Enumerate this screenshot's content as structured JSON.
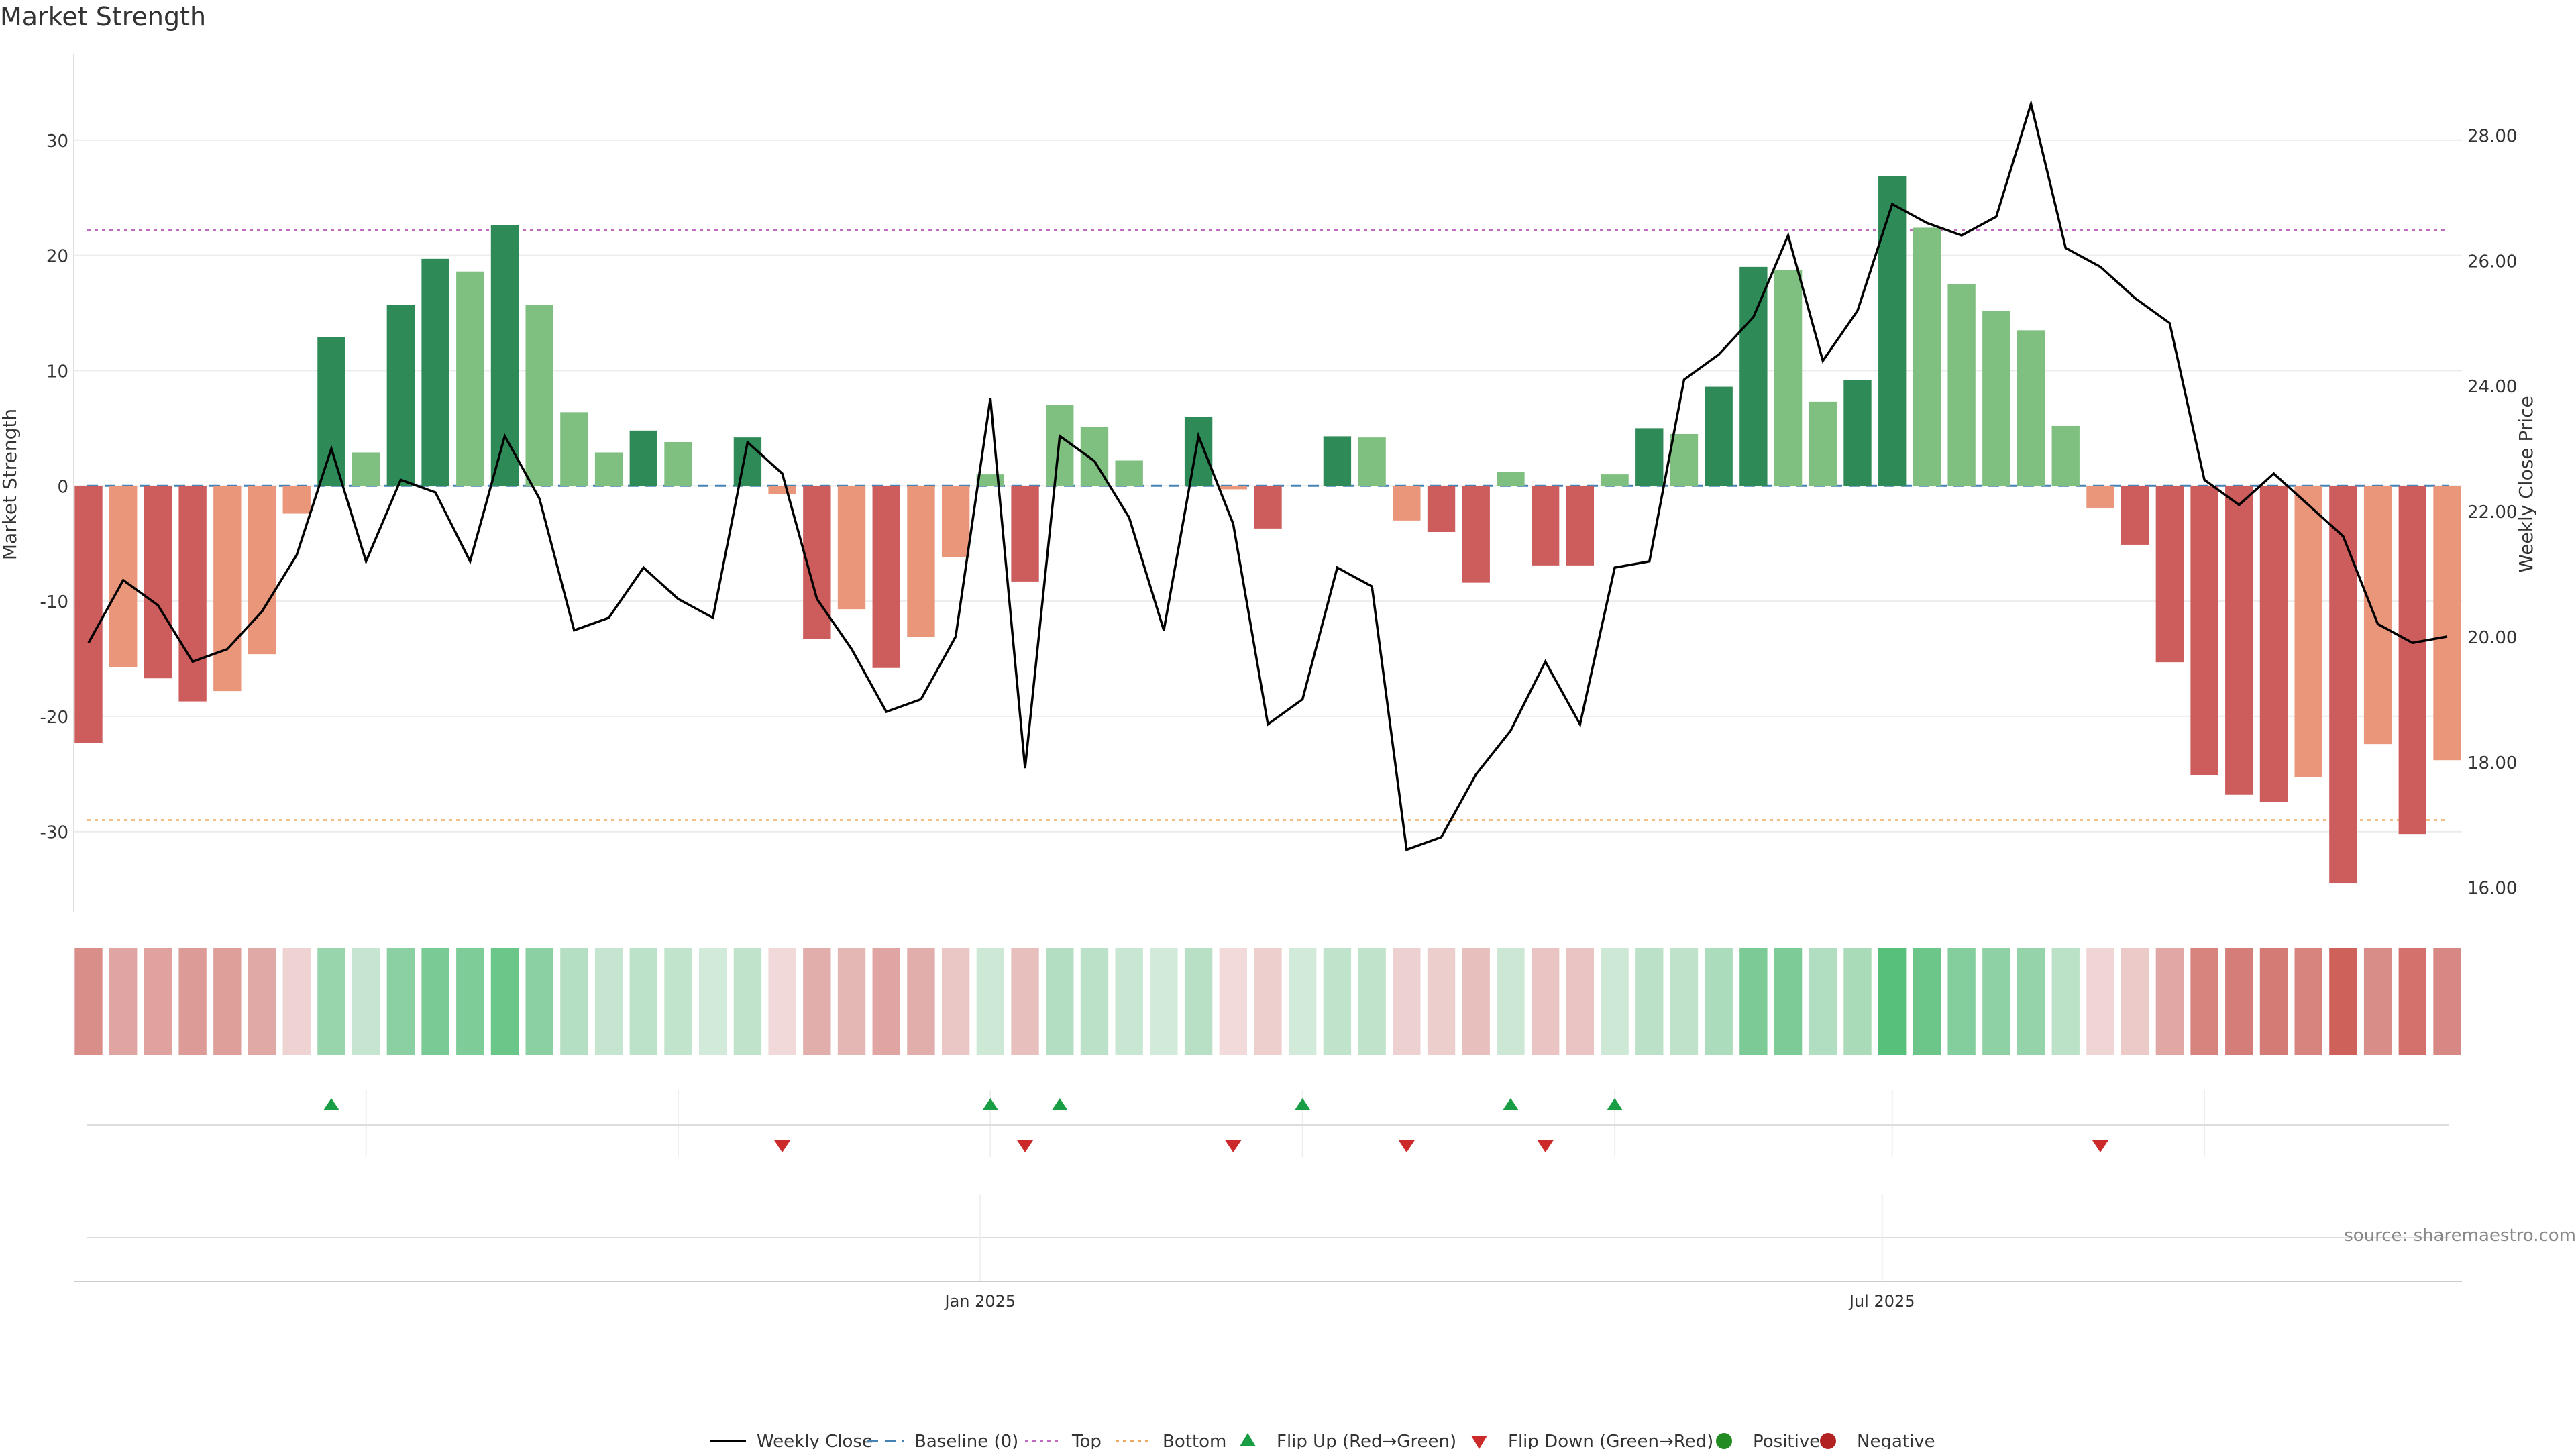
{
  "title": "Market Strength",
  "source": "source: sharemaestro.com",
  "colors": {
    "pos_strong": "#2e8b57",
    "pos_light": "#7fbf7f",
    "neg_strong": "#cd5c5c",
    "neg_light": "#e9967a",
    "price_line": "#000000",
    "baseline": "#4682b4",
    "top_line": "#c06bc0",
    "bottom_line": "#f0a860",
    "flip_up": "#1a9e45",
    "flip_down": "#cc2a2a",
    "positive_dot": "#228b22",
    "negative_dot": "#b22222"
  },
  "legend": [
    {
      "label": "Weekly Close",
      "kind": "line"
    },
    {
      "label": "Baseline (0)",
      "kind": "dash"
    },
    {
      "label": "Top",
      "kind": "dot-top"
    },
    {
      "label": "Bottom",
      "kind": "dot-bottom"
    },
    {
      "label": "Flip Up (Red→Green)",
      "kind": "tri-up"
    },
    {
      "label": "Flip Down (Green→Red)",
      "kind": "tri-down"
    },
    {
      "label": "Positive",
      "kind": "dot-pos"
    },
    {
      "label": "Negative",
      "kind": "dot-neg"
    }
  ],
  "chart_data": {
    "type": "bar",
    "ylabel": "Market Strength",
    "y2label": "Weekly Close Price",
    "ylim": [
      -37,
      37.5
    ],
    "y2lim": [
      15.6,
      29.3
    ],
    "yticks": [
      30,
      20,
      10,
      0,
      -10,
      -20,
      -30
    ],
    "y2ticks": [
      "28.00",
      "26.00",
      "24.00",
      "22.00",
      "20.00",
      "18.00",
      "16.00"
    ],
    "top_level": 22.2,
    "bottom_level": -29.0,
    "x_labels": [
      {
        "label": "Jan 2025",
        "week": 26
      },
      {
        "label": "Jul 2025",
        "week": 52
      }
    ],
    "series": [
      {
        "name": "Weekly Close",
        "values": [
          19.9,
          20.9,
          20.5,
          19.6,
          19.8,
          20.4,
          21.3,
          23.0,
          21.2,
          22.5,
          22.3,
          21.2,
          23.2,
          22.2,
          20.1,
          20.3,
          21.1,
          20.6,
          20.3,
          23.1,
          22.6,
          20.6,
          19.8,
          18.8,
          19.0,
          20.0,
          23.8,
          17.9,
          23.2,
          22.8,
          21.9,
          20.1,
          23.2,
          21.8,
          18.6,
          19.0,
          21.1,
          20.8,
          16.6,
          16.8,
          17.8,
          18.5,
          19.6,
          18.6,
          21.1,
          21.2,
          24.1,
          24.5,
          25.1,
          26.4,
          24.4,
          25.2,
          26.9,
          26.6,
          26.4,
          26.7,
          28.5,
          26.2,
          25.9,
          25.4,
          25.0,
          22.5,
          22.1,
          22.6,
          22.1,
          21.6,
          20.2,
          19.9,
          20.0
        ]
      },
      {
        "name": "Market Strength",
        "values": [
          -22.3,
          -15.7,
          -16.7,
          -18.7,
          -17.8,
          -14.6,
          -2.4,
          12.9,
          2.9,
          15.7,
          19.7,
          18.6,
          22.6,
          15.7,
          6.4,
          2.9,
          4.8,
          3.8,
          0,
          4.2,
          -0.7,
          -13.3,
          -10.7,
          -15.8,
          -13.1,
          -6.2,
          1.0,
          -8.3,
          7.0,
          5.1,
          2.2,
          0,
          6.0,
          -0.3,
          -3.7,
          0,
          4.3,
          4.2,
          -3.0,
          -4.0,
          -8.4,
          1.2,
          -6.9,
          -6.9,
          1.0,
          5.0,
          4.5,
          8.6,
          19.0,
          18.7,
          7.3,
          9.2,
          26.9,
          22.4,
          17.5,
          15.2,
          13.5,
          5.2,
          -1.9,
          -5.1,
          -15.3,
          -25.1,
          -26.8,
          -27.4,
          -25.3,
          -34.5,
          -22.4,
          -30.2,
          -23.8
        ]
      }
    ],
    "flip_up_weeks": [
      7,
      26,
      28,
      35,
      41,
      44
    ],
    "flip_down_weeks": [
      20,
      27,
      33,
      38,
      42,
      58
    ]
  }
}
